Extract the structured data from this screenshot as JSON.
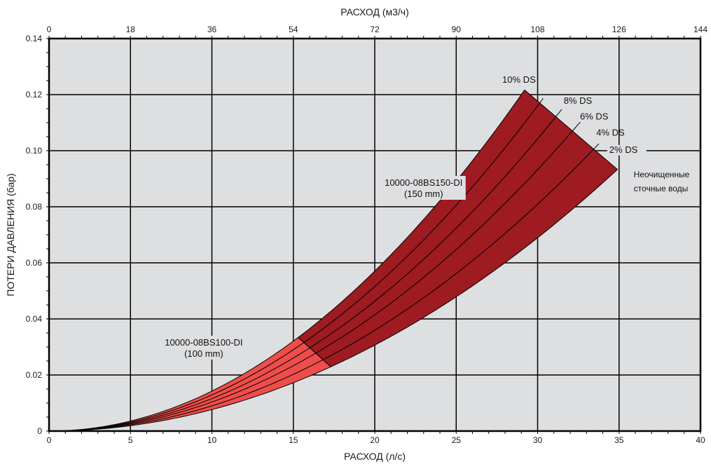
{
  "chart_data": {
    "type": "area",
    "title": "",
    "xlabel": "РАСХОД (л/с)",
    "x2label": "РАСХОД (м3/ч)",
    "ylabel": "ПОТЕРИ ДАВЛЕНИЯ (бар)",
    "xlim": [
      0,
      40
    ],
    "x2lim": [
      0,
      144
    ],
    "ylim": [
      0,
      0.14
    ],
    "x_ticks": [
      0,
      5,
      10,
      15,
      20,
      25,
      30,
      35,
      40
    ],
    "x2_ticks": [
      0,
      18,
      36,
      54,
      72,
      90,
      108,
      126,
      144
    ],
    "y_ticks": [
      0,
      0.02,
      0.04,
      0.06,
      0.08,
      0.1,
      0.12,
      0.14
    ],
    "y_tick_labels": [
      "0",
      "0.02",
      "0.04",
      "0.06",
      "0.08",
      "0.10",
      "0.12",
      "0.14"
    ],
    "grid": true,
    "series": [
      {
        "name": "10% DS",
        "k": 0.0001427
      },
      {
        "name": "8% DS",
        "k": 0.0001289
      },
      {
        "name": "6% DS",
        "k": 0.0001158
      },
      {
        "name": "4% DS",
        "k": 0.0001036
      },
      {
        "name": "2% DS",
        "k": 8.99e-05
      },
      {
        "name": "Неочищенные сточные воды",
        "k": 7.66e-05
      }
    ],
    "zones": [
      {
        "label_line1": "10000-08BS100-DI",
        "label_line2": "(100 mm)",
        "x_upper_end": 15.3,
        "x_lower_end": 17.3,
        "color": "#ee4e4b",
        "label_at": [
          9.5,
          0.0305
        ]
      },
      {
        "label_line1": "10000-08BS150-DI",
        "label_line2": "(150 mm)",
        "x_upper_end": 29.2,
        "x_lower_end": 34.9,
        "color": "#9e1b21",
        "label_at": [
          23.0,
          0.0875
        ]
      }
    ],
    "raw_label_lines": [
      "Неочищенные",
      "сточные воды"
    ]
  }
}
